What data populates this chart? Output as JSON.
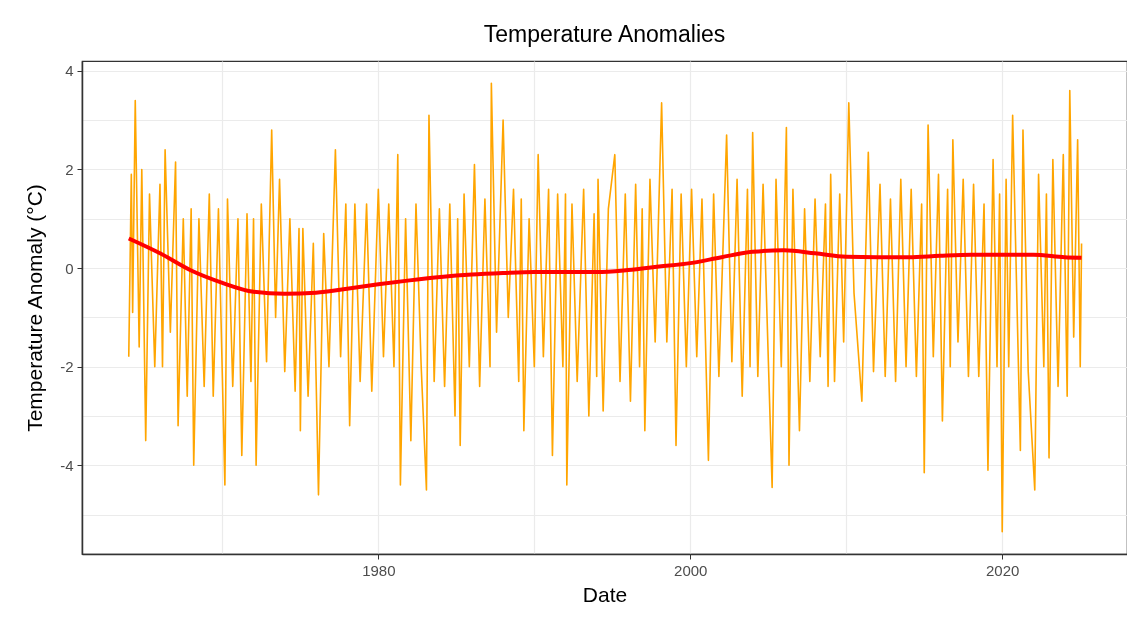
{
  "chart_data": {
    "type": "line",
    "title": "Temperature Anomalies",
    "xlabel": "Date",
    "ylabel": "Temperature Anomaly (°C)",
    "xlim": [
      "1961",
      "2028"
    ],
    "xticks": [
      {
        "value": "1970",
        "label": null
      },
      {
        "value": "1980",
        "label": "1980"
      },
      {
        "value": "1990",
        "label": null
      },
      {
        "value": "2000",
        "label": "2000"
      },
      {
        "value": "2010",
        "label": null
      },
      {
        "value": "2020",
        "label": "2020"
      }
    ],
    "ylim": [
      -5.8,
      4.2
    ],
    "yticks": [
      {
        "value": -5,
        "label": null
      },
      -4,
      {
        "value": -3,
        "label": null
      },
      -2,
      {
        "value": -1,
        "label": null
      },
      0,
      {
        "value": 1,
        "label": null
      },
      2,
      {
        "value": 3,
        "label": null
      },
      4
    ],
    "grid": true,
    "series": [
      {
        "color": "#ffa500",
        "x": [
          "1964-01",
          "1964-03",
          "1964-04",
          "1964-06",
          "1964-09",
          "1964-11",
          "1965-02",
          "1965-05",
          "1965-09",
          "1966-01",
          "1966-03",
          "1966-05",
          "1966-09",
          "1967-01",
          "1967-03",
          "1967-07",
          "1967-10",
          "1968-01",
          "1968-03",
          "1968-07",
          "1968-11",
          "1969-03",
          "1969-06",
          "1969-10",
          "1970-03",
          "1970-05",
          "1970-09",
          "1971-01",
          "1971-04",
          "1971-08",
          "1971-11",
          "1972-01",
          "1972-03",
          "1972-07",
          "1972-11",
          "1973-03",
          "1973-06",
          "1973-09",
          "1974-01",
          "1974-05",
          "1974-09",
          "1974-12",
          "1975-01",
          "1975-03",
          "1975-07",
          "1975-11",
          "1976-03",
          "1976-07",
          "1976-11",
          "1977-04",
          "1977-08",
          "1977-12",
          "1978-03",
          "1978-07",
          "1978-11",
          "1979-04",
          "1979-08",
          "1980-01",
          "1980-05",
          "1980-09",
          "1981-01",
          "1981-04",
          "1981-06",
          "1981-10",
          "1982-02",
          "1982-06",
          "1982-10",
          "1983-02",
          "1983-04",
          "1983-08",
          "1983-12",
          "1984-04",
          "1984-08",
          "1984-12",
          "1985-02",
          "1985-04",
          "1985-07",
          "1985-11",
          "1986-03",
          "1986-07",
          "1986-11",
          "1987-03",
          "1987-04",
          "1987-08",
          "1988-01",
          "1988-05",
          "1988-09",
          "1989-01",
          "1989-03",
          "1989-05",
          "1989-09",
          "1990-01",
          "1990-04",
          "1990-08",
          "1990-12",
          "1991-03",
          "1991-07",
          "1991-11",
          "1992-01",
          "1992-02",
          "1992-06",
          "1992-10",
          "1993-03",
          "1993-07",
          "1993-11",
          "1994-01",
          "1994-02",
          "1994-06",
          "1994-10",
          "1995-03",
          "1995-07",
          "1995-11",
          "1996-03",
          "1996-07",
          "1996-10",
          "1996-12",
          "1997-02",
          "1997-06",
          "1997-10",
          "1998-03",
          "1998-07",
          "1998-11",
          "1999-02",
          "1999-06",
          "1999-10",
          "2000-02",
          "2000-06",
          "2000-10",
          "2001-03",
          "2001-07",
          "2001-11",
          "2002-05",
          "2002-09",
          "2003-01",
          "2003-05",
          "2003-09",
          "2003-11",
          "2004-01",
          "2004-05",
          "2004-09",
          "2005-04",
          "2005-07",
          "2005-11",
          "2006-03",
          "2006-05",
          "2006-08",
          "2007-01",
          "2007-05",
          "2007-09",
          "2008-01",
          "2008-05",
          "2008-09",
          "2008-11",
          "2009-01",
          "2009-04",
          "2009-08",
          "2009-11",
          "2010-03",
          "2010-07",
          "2011-01",
          "2011-06",
          "2011-10",
          "2012-03",
          "2012-07",
          "2012-11",
          "2013-03",
          "2013-07",
          "2013-11",
          "2014-03",
          "2014-07",
          "2014-11",
          "2015-01",
          "2015-04",
          "2015-08",
          "2015-12",
          "2016-03",
          "2016-07",
          "2016-09",
          "2016-11",
          "2017-03",
          "2017-07",
          "2017-11",
          "2018-03",
          "2018-07",
          "2018-11",
          "2019-02",
          "2019-06",
          "2019-09",
          "2019-11",
          "2020-01",
          "2020-04",
          "2020-06",
          "2020-09",
          "2021-03",
          "2021-05",
          "2021-09",
          "2022-02",
          "2022-05",
          "2022-09",
          "2022-11",
          "2023-01",
          "2023-04",
          "2023-08",
          "2023-12",
          "2024-03",
          "2024-05",
          "2024-08",
          "2024-11",
          "2025-01",
          "2025-02"
        ],
        "values": [
          -1.8,
          1.9,
          -0.9,
          3.4,
          -1.6,
          2.0,
          -3.5,
          1.5,
          -2.0,
          1.7,
          -2.0,
          2.4,
          -1.3,
          2.15,
          -3.2,
          1.0,
          -2.6,
          1.2,
          -4.0,
          1.0,
          -2.4,
          1.5,
          -2.6,
          1.2,
          -4.4,
          1.4,
          -2.4,
          1.0,
          -3.8,
          1.1,
          -2.3,
          1.0,
          -4.0,
          1.3,
          -1.9,
          2.8,
          -1.0,
          1.8,
          -2.1,
          1.0,
          -2.5,
          0.8,
          -3.3,
          0.8,
          -2.6,
          0.5,
          -4.6,
          0.7,
          -2.0,
          2.4,
          -1.8,
          1.3,
          -3.2,
          1.3,
          -2.3,
          1.3,
          -2.5,
          1.6,
          -1.8,
          1.3,
          -2.0,
          2.3,
          -4.4,
          1.0,
          -3.5,
          1.3,
          -2.0,
          -4.5,
          3.1,
          -2.3,
          1.2,
          -2.4,
          1.3,
          -3.0,
          1.0,
          -3.6,
          1.5,
          -2.0,
          2.1,
          -2.4,
          1.4,
          -2.0,
          3.75,
          -1.3,
          3.0,
          -1.0,
          1.6,
          -2.3,
          1.4,
          -3.3,
          1.0,
          -2.0,
          2.3,
          -1.8,
          1.6,
          -3.8,
          1.5,
          -2.0,
          1.5,
          -4.4,
          1.3,
          -2.3,
          1.6,
          -3.0,
          1.1,
          -2.2,
          1.8,
          -2.9,
          1.2,
          2.3,
          -2.3,
          1.5,
          -2.7,
          1.7,
          -2.0,
          1.2,
          -3.3,
          1.8,
          -1.5,
          3.35,
          -1.5,
          1.6,
          -3.6,
          1.5,
          -2.0,
          1.6,
          -1.8,
          1.4,
          -3.9,
          1.5,
          -2.2,
          2.7,
          -1.9,
          1.8,
          -2.6,
          1.6,
          -2.0,
          2.75,
          -2.2,
          1.7,
          -4.45,
          1.8,
          -2.0,
          2.85,
          -4.0,
          1.6,
          -3.3,
          1.2,
          -2.3,
          1.4,
          -1.8,
          1.3,
          -2.4,
          1.9,
          -2.3,
          1.5,
          -1.5,
          3.35,
          -0.5,
          -2.7,
          2.35,
          -2.1,
          1.7,
          -2.2,
          1.4,
          -2.3,
          1.8,
          -2.0,
          1.6,
          -2.2,
          1.3,
          -4.15,
          2.9,
          -1.8,
          1.9,
          -3.1,
          1.6,
          -2.0,
          2.6,
          -1.5,
          1.8,
          -2.2,
          1.7,
          -2.2,
          1.3,
          -4.1,
          2.2,
          -2.0,
          1.5,
          -5.35,
          1.8,
          -2.0,
          3.1,
          -3.7,
          2.8,
          -2.1,
          -4.5,
          1.9,
          -2.0,
          1.5,
          -3.85,
          2.2,
          -2.4,
          2.3,
          -2.6,
          3.6,
          -1.4,
          2.6,
          -2.0,
          0.5
        ]
      },
      {
        "color": "#ff0000",
        "x": [
          "1964",
          "1966",
          "1968",
          "1970",
          "1972",
          "1974",
          "1976",
          "1978",
          "1980",
          "1982",
          "1984",
          "1986",
          "1988",
          "1990",
          "1992",
          "1994",
          "1996",
          "1998",
          "2000",
          "2002",
          "2004",
          "2006",
          "2008",
          "2010",
          "2012",
          "2014",
          "2016",
          "2018",
          "2020",
          "2022",
          "2024",
          "2025-02"
        ],
        "values": [
          0.6,
          0.3,
          -0.05,
          -0.3,
          -0.48,
          -0.52,
          -0.5,
          -0.42,
          -0.33,
          -0.25,
          -0.18,
          -0.13,
          -0.1,
          -0.08,
          -0.08,
          -0.08,
          -0.04,
          0.03,
          0.1,
          0.22,
          0.33,
          0.36,
          0.3,
          0.23,
          0.22,
          0.22,
          0.25,
          0.27,
          0.27,
          0.27,
          0.22,
          0.21
        ]
      }
    ]
  }
}
